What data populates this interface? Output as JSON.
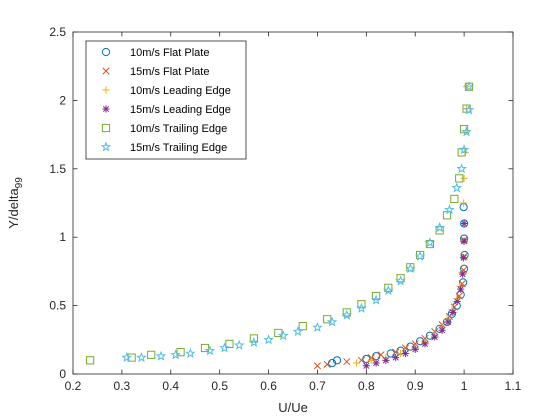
{
  "chart_data": {
    "type": "scatter",
    "title": "",
    "xlabel": "U/Ue",
    "ylabel": "Y/delta",
    "ylabel_subscript": "99",
    "xlim": [
      0.2,
      1.1
    ],
    "ylim": [
      0,
      2.5
    ],
    "xticks": [
      0.2,
      0.3,
      0.4,
      0.5,
      0.6,
      0.7,
      0.8,
      0.9,
      1,
      1.1
    ],
    "yticks": [
      0,
      0.5,
      1,
      1.5,
      2,
      2.5
    ],
    "grid": false,
    "legend_position": "top-left",
    "series": [
      {
        "name": "10m/s Flat Plate",
        "marker": "circle",
        "color": "#0072BD",
        "points": [
          [
            0.73,
            0.08
          ],
          [
            0.74,
            0.1
          ],
          [
            0.8,
            0.11
          ],
          [
            0.82,
            0.13
          ],
          [
            0.85,
            0.15
          ],
          [
            0.87,
            0.17
          ],
          [
            0.89,
            0.2
          ],
          [
            0.91,
            0.24
          ],
          [
            0.93,
            0.28
          ],
          [
            0.95,
            0.33
          ],
          [
            0.965,
            0.38
          ],
          [
            0.975,
            0.44
          ],
          [
            0.985,
            0.5
          ],
          [
            0.993,
            0.58
          ],
          [
            0.998,
            0.67
          ],
          [
            1.0,
            0.77
          ],
          [
            1.001,
            0.87
          ],
          [
            1.0,
            0.99
          ],
          [
            1.0,
            1.1
          ],
          [
            0.999,
            1.22
          ]
        ]
      },
      {
        "name": "15m/s Flat Plate",
        "marker": "x",
        "color": "#D95319",
        "points": [
          [
            0.7,
            0.06
          ],
          [
            0.72,
            0.07
          ],
          [
            0.76,
            0.09
          ],
          [
            0.79,
            0.1
          ],
          [
            0.81,
            0.12
          ],
          [
            0.83,
            0.14
          ],
          [
            0.86,
            0.16
          ],
          [
            0.88,
            0.19
          ],
          [
            0.9,
            0.22
          ],
          [
            0.92,
            0.26
          ],
          [
            0.94,
            0.31
          ],
          [
            0.955,
            0.36
          ],
          [
            0.97,
            0.42
          ],
          [
            0.98,
            0.49
          ],
          [
            0.99,
            0.57
          ],
          [
            0.996,
            0.66
          ],
          [
            0.999,
            0.76
          ],
          [
            1.0,
            0.86
          ],
          [
            1.0,
            0.98
          ]
        ]
      },
      {
        "name": "10m/s Leading Edge",
        "marker": "plus",
        "color": "#EDB120",
        "points": [
          [
            0.78,
            0.08
          ],
          [
            0.81,
            0.1
          ],
          [
            0.84,
            0.12
          ],
          [
            0.87,
            0.15
          ],
          [
            0.9,
            0.19
          ],
          [
            0.92,
            0.23
          ],
          [
            0.94,
            0.28
          ],
          [
            0.955,
            0.34
          ],
          [
            0.965,
            0.4
          ],
          [
            0.975,
            0.47
          ],
          [
            0.985,
            0.55
          ],
          [
            0.992,
            0.64
          ],
          [
            0.996,
            0.74
          ],
          [
            0.998,
            0.85
          ],
          [
            0.999,
            0.97
          ],
          [
            0.999,
            1.1
          ],
          [
            0.999,
            1.25
          ],
          [
            1.0,
            1.43
          ],
          [
            1.002,
            1.62
          ],
          [
            1.004,
            1.78
          ],
          [
            1.005,
            1.94
          ],
          [
            1.005,
            2.1
          ]
        ]
      },
      {
        "name": "15m/s Leading Edge",
        "marker": "asterisk",
        "color": "#7E2F8E",
        "points": [
          [
            0.8,
            0.06
          ],
          [
            0.82,
            0.08
          ],
          [
            0.84,
            0.1
          ],
          [
            0.86,
            0.12
          ],
          [
            0.88,
            0.15
          ],
          [
            0.9,
            0.18
          ],
          [
            0.92,
            0.22
          ],
          [
            0.94,
            0.27
          ],
          [
            0.955,
            0.32
          ],
          [
            0.967,
            0.38
          ],
          [
            0.977,
            0.45
          ],
          [
            0.986,
            0.53
          ],
          [
            0.993,
            0.62
          ],
          [
            0.997,
            0.73
          ],
          [
            0.999,
            0.85
          ],
          [
            1.0,
            0.97
          ],
          [
            1.0,
            1.1
          ]
        ]
      },
      {
        "name": "10m/s Trailing Edge",
        "marker": "square",
        "color": "#77AC30",
        "points": [
          [
            0.235,
            0.1
          ],
          [
            0.32,
            0.12
          ],
          [
            0.36,
            0.14
          ],
          [
            0.42,
            0.16
          ],
          [
            0.47,
            0.19
          ],
          [
            0.52,
            0.22
          ],
          [
            0.57,
            0.26
          ],
          [
            0.62,
            0.3
          ],
          [
            0.67,
            0.35
          ],
          [
            0.72,
            0.4
          ],
          [
            0.76,
            0.45
          ],
          [
            0.79,
            0.51
          ],
          [
            0.82,
            0.57
          ],
          [
            0.845,
            0.63
          ],
          [
            0.87,
            0.7
          ],
          [
            0.89,
            0.78
          ],
          [
            0.91,
            0.87
          ],
          [
            0.93,
            0.95
          ],
          [
            0.95,
            1.05
          ],
          [
            0.965,
            1.16
          ],
          [
            0.98,
            1.28
          ],
          [
            0.99,
            1.43
          ],
          [
            0.995,
            1.62
          ],
          [
            1.0,
            1.79
          ],
          [
            1.005,
            1.94
          ],
          [
            1.01,
            2.1
          ]
        ]
      },
      {
        "name": "15m/s Trailing Edge",
        "marker": "pentagram",
        "color": "#4DBEEE",
        "points": [
          [
            0.31,
            0.12
          ],
          [
            0.34,
            0.12
          ],
          [
            0.38,
            0.13
          ],
          [
            0.41,
            0.14
          ],
          [
            0.44,
            0.15
          ],
          [
            0.48,
            0.17
          ],
          [
            0.51,
            0.19
          ],
          [
            0.54,
            0.21
          ],
          [
            0.57,
            0.23
          ],
          [
            0.6,
            0.25
          ],
          [
            0.63,
            0.28
          ],
          [
            0.66,
            0.31
          ],
          [
            0.7,
            0.34
          ],
          [
            0.73,
            0.38
          ],
          [
            0.76,
            0.43
          ],
          [
            0.79,
            0.48
          ],
          [
            0.82,
            0.54
          ],
          [
            0.845,
            0.61
          ],
          [
            0.87,
            0.68
          ],
          [
            0.89,
            0.77
          ],
          [
            0.91,
            0.86
          ],
          [
            0.93,
            0.96
          ],
          [
            0.95,
            1.07
          ],
          [
            0.97,
            1.2
          ],
          [
            0.985,
            1.36
          ],
          [
            0.995,
            1.5
          ],
          [
            1.0,
            1.64
          ],
          [
            1.005,
            1.77
          ],
          [
            1.01,
            1.93
          ],
          [
            1.01,
            2.1
          ]
        ]
      }
    ]
  }
}
